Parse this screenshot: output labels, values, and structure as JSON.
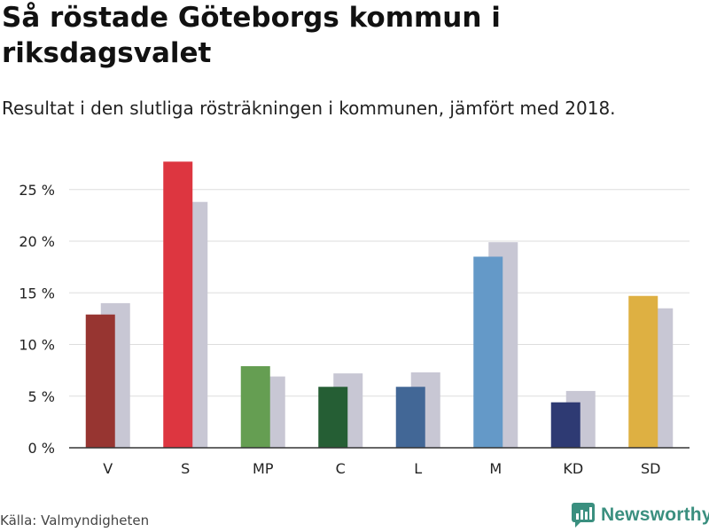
{
  "title": "Så röstade Göteborgs kommun i riksdagsvalet",
  "subtitle": "Resultat i den slutliga rösträkningen i kommunen, jämfört med 2018.",
  "source": "Källa: Valmyndigheten",
  "brand": "Newsworthy",
  "colors": {
    "comparison": "#c8c7d4",
    "grid": "#dddddd",
    "axis": "#333333",
    "brand": "#3a8f7f"
  },
  "chart_data": {
    "type": "bar",
    "title": "Så röstade Göteborgs kommun i riksdagsvalet",
    "xlabel": "",
    "ylabel": "",
    "ylim": [
      0,
      28
    ],
    "yticks": [
      0,
      5,
      10,
      15,
      20,
      25
    ],
    "ytick_labels": [
      "0 %",
      "5 %",
      "10 %",
      "15 %",
      "20 %",
      "25 %"
    ],
    "categories": [
      "V",
      "S",
      "MP",
      "C",
      "L",
      "M",
      "KD",
      "SD"
    ],
    "series": [
      {
        "name": "Slutlig rösträkning",
        "values": [
          12.9,
          27.7,
          7.9,
          5.9,
          5.9,
          18.5,
          4.4,
          14.7
        ],
        "colors": [
          "#973531",
          "#dd3640",
          "#659e52",
          "#255e34",
          "#426796",
          "#6499c8",
          "#2e3a73",
          "#deb042"
        ]
      },
      {
        "name": "2018",
        "values": [
          14.0,
          23.8,
          6.9,
          7.2,
          7.3,
          19.9,
          5.5,
          13.5
        ],
        "color": "#c8c7d4"
      }
    ]
  }
}
